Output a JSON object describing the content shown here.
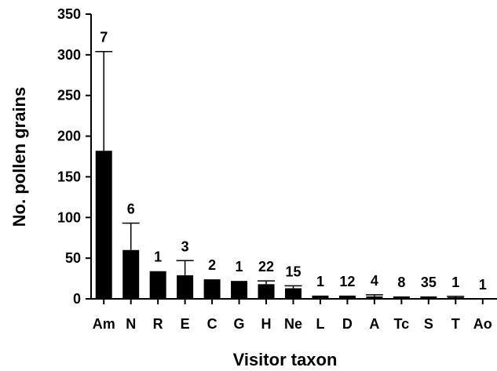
{
  "chart_data": {
    "type": "bar",
    "title": "",
    "xlabel": "Visitor taxon",
    "ylabel": "No. pollen grains",
    "ylim": [
      0,
      350
    ],
    "yticks": [
      0,
      50,
      100,
      150,
      200,
      250,
      300,
      350
    ],
    "grid": false,
    "categories": [
      "Am",
      "N",
      "R",
      "E",
      "C",
      "G",
      "H",
      "Ne",
      "L",
      "D",
      "A",
      "Tc",
      "S",
      "T",
      "Ao"
    ],
    "values": [
      182,
      60,
      34,
      29,
      24,
      22,
      18,
      13,
      4,
      4,
      3,
      3,
      3,
      2,
      0
    ],
    "error_upper": [
      304,
      93,
      null,
      47,
      null,
      null,
      22,
      16,
      null,
      null,
      5,
      null,
      null,
      3,
      null
    ],
    "sample_sizes": [
      "7",
      "6",
      "1",
      "3",
      "2",
      "1",
      "22",
      "15",
      "1",
      "12",
      "4",
      "8",
      "35",
      "1",
      "1"
    ],
    "colors": {
      "bar": "#000000",
      "axis": "#000000"
    }
  }
}
